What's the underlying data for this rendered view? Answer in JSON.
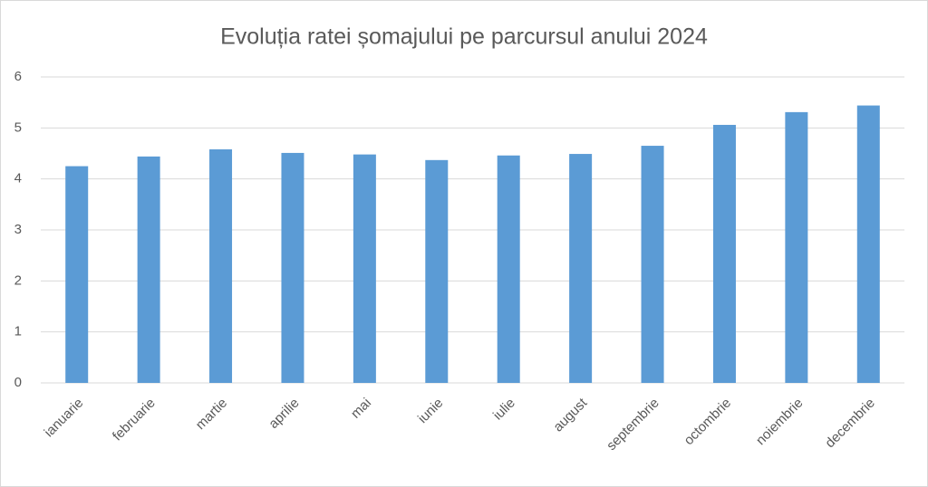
{
  "chart_data": {
    "type": "bar",
    "title": "Evoluția ratei șomajului  pe parcursul anului 2024",
    "categories": [
      "ianuarie",
      "februarie",
      "martie",
      "aprilie",
      "mai",
      "iunie",
      "iulie",
      "august",
      "septembrie",
      "octombrie",
      "noiembrie",
      "decembrie"
    ],
    "values": [
      4.25,
      4.44,
      4.58,
      4.51,
      4.48,
      4.37,
      4.46,
      4.49,
      4.65,
      5.06,
      5.31,
      5.44
    ],
    "color": "#5b9bd5",
    "ylim": [
      0,
      6
    ],
    "yticks": [
      0,
      1,
      2,
      3,
      4,
      5,
      6
    ],
    "grid": true
  }
}
